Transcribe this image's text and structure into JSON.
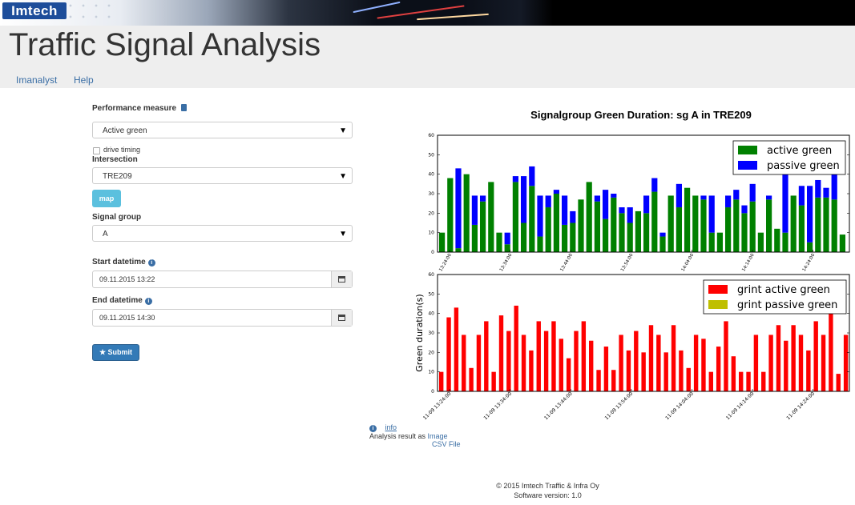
{
  "banner": {
    "logo": "Imtech"
  },
  "header": {
    "title": "Traffic Signal Analysis",
    "nav": [
      "Imanalyst",
      "Help"
    ]
  },
  "form": {
    "performance_measure": {
      "label": "Performance measure",
      "value": "Active green"
    },
    "drive_timing": {
      "label": "drive timing",
      "checked": false
    },
    "intersection": {
      "label": "Intersection",
      "value": "TRE209"
    },
    "map_button": "map",
    "signal_group": {
      "label": "Signal group",
      "value": "A"
    },
    "start_datetime": {
      "label": "Start datetime",
      "value": "09.11.2015 13:22"
    },
    "end_datetime": {
      "label": "End datetime",
      "value": "09.11.2015 14:30"
    },
    "submit_button": "Submit"
  },
  "chart_data": [
    {
      "type": "bar",
      "stacked": true,
      "title": "Signalgroup Green Duration: sg A in TRE209",
      "xlabel": "",
      "ylabel": "",
      "ylim": [
        0,
        60
      ],
      "yticks": [
        0,
        10,
        20,
        30,
        40,
        50,
        60
      ],
      "xticks": [
        "13:24:00",
        "13:34:00",
        "13:44:00",
        "13:54:00",
        "14:04:00",
        "14:14:00",
        "14:24:00"
      ],
      "x_range_minutes": [
        "13:22",
        "14:30"
      ],
      "legend": "top-right",
      "series": [
        {
          "name": "active green",
          "color": "#008000",
          "values": [
            10,
            38,
            2,
            40,
            14,
            26,
            36,
            10,
            4,
            36,
            15,
            34,
            8,
            23,
            30,
            14,
            15,
            27,
            36,
            26,
            17,
            28,
            20,
            15,
            21,
            20,
            31,
            8,
            29,
            23,
            33,
            29,
            27,
            10,
            10,
            23,
            27,
            20,
            26,
            10,
            27,
            12,
            10,
            29,
            24,
            5,
            28,
            28,
            27,
            9
          ]
        },
        {
          "name": "passive green",
          "color": "#0000ff",
          "values": [
            0,
            0,
            41,
            0,
            15,
            3,
            0,
            0,
            6,
            3,
            24,
            10,
            21,
            6,
            2,
            15,
            6,
            0,
            0,
            3,
            15,
            2,
            3,
            8,
            0,
            9,
            7,
            2,
            0,
            12,
            0,
            0,
            2,
            19,
            0,
            6,
            5,
            4,
            9,
            0,
            2,
            0,
            30,
            0,
            10,
            29,
            9,
            5,
            13,
            0
          ]
        }
      ]
    },
    {
      "type": "bar",
      "stacked": true,
      "title": "",
      "xlabel": "",
      "ylabel": "Green duration(s)",
      "ylim": [
        0,
        60
      ],
      "yticks": [
        0,
        10,
        20,
        30,
        40,
        50,
        60
      ],
      "xticks": [
        "11-09 13:24:00",
        "11-09 13:34:00",
        "11-09 13:44:00",
        "11-09 13:54:00",
        "11-09 14:04:00",
        "11-09 14:14:00",
        "11-09 14:24:00"
      ],
      "legend": "top-right",
      "series": [
        {
          "name": "grint active green",
          "color": "#ff0000",
          "values": [
            10,
            38,
            43,
            29,
            12,
            29,
            36,
            10,
            39,
            31,
            44,
            29,
            21,
            36,
            31,
            36,
            27,
            17,
            31,
            36,
            26,
            11,
            23,
            11,
            29,
            21,
            31,
            20,
            34,
            29,
            20,
            34,
            21,
            12,
            29,
            27,
            10,
            23,
            36,
            18,
            10,
            10,
            29,
            10,
            29,
            34,
            26,
            34,
            29,
            21,
            36,
            29,
            41,
            9,
            29
          ]
        },
        {
          "name": "grint passive green",
          "color": "#bfbf00",
          "values": [
            0,
            0,
            0,
            0,
            0,
            0,
            0,
            0,
            0,
            0,
            0,
            0,
            0,
            0,
            0,
            0,
            0,
            0,
            0,
            0,
            0,
            0,
            0,
            0,
            0,
            0,
            0,
            0,
            0,
            0,
            0,
            0,
            0,
            0,
            0,
            0,
            0,
            0,
            0,
            0,
            0,
            0,
            0,
            0,
            0,
            0,
            0,
            0,
            0,
            0,
            0,
            0,
            0,
            0,
            0
          ]
        }
      ]
    }
  ],
  "analysis": {
    "info_link": "info",
    "prefix": "Analysis result as",
    "image_link": "Image",
    "csv_link": "CSV File"
  },
  "footer": {
    "copyright": "© 2015 Imtech Traffic & Infra Oy",
    "version": "Software version: 1.0"
  }
}
